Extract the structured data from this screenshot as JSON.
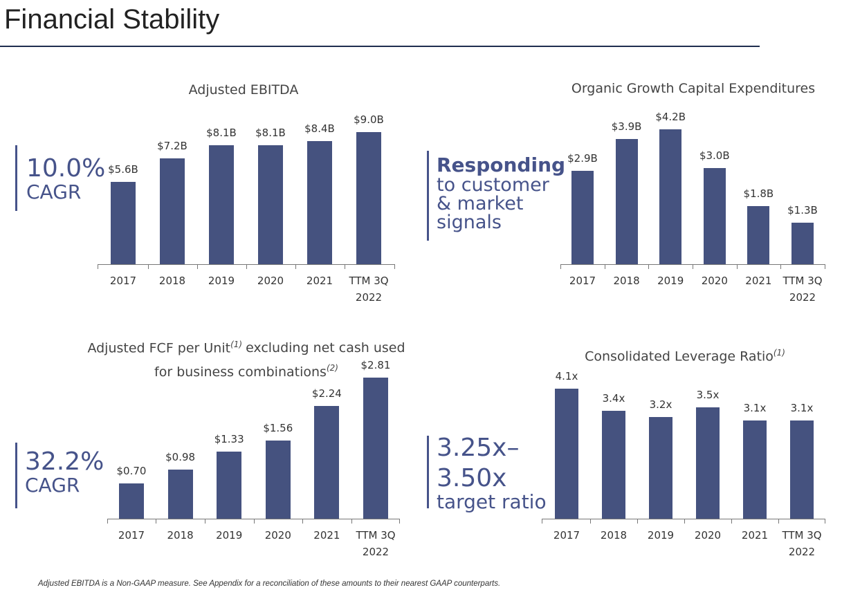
{
  "page_title": "Financial Stability",
  "footnote": "Adjusted EBITDA is a Non-GAAP measure. See Appendix for a reconciliation of these amounts to their nearest GAAP counterparts.",
  "chart_data": [
    {
      "type": "bar",
      "title": [
        {
          "text": "Adjusted EBITDA"
        }
      ],
      "color": "#45527f",
      "categories": [
        "2017",
        "2018",
        "2019",
        "2020",
        "2021",
        "TTM 3Q 2022"
      ],
      "values": [
        5.6,
        7.2,
        8.1,
        8.1,
        8.4,
        9.0
      ],
      "value_labels": [
        "$5.6B",
        "$7.2B",
        "$8.1B",
        "$8.1B",
        "$8.4B",
        "$9.0B"
      ],
      "callout": {
        "headline": "10.0%",
        "text": "CAGR"
      }
    },
    {
      "type": "bar",
      "title": [
        {
          "text": "Organic Growth Capital Expenditures"
        }
      ],
      "color": "#45527f",
      "categories": [
        "2017",
        "2018",
        "2019",
        "2020",
        "2021",
        "TTM 3Q 2022"
      ],
      "values": [
        2.9,
        3.9,
        4.2,
        3.0,
        1.8,
        1.3
      ],
      "value_labels": [
        "$2.9B",
        "$3.9B",
        "$4.2B",
        "$3.0B",
        "$1.8B",
        "$1.3B"
      ],
      "callout": {
        "headline": "Responding",
        "text": "to customer & market signals"
      }
    },
    {
      "type": "bar",
      "title": [
        {
          "text": "Adjusted FCF per Unit"
        },
        {
          "text": "(1)",
          "sup": true
        },
        {
          "text": "excluding net cash used for business combinations"
        },
        {
          "text": "(2)",
          "sup": true
        }
      ],
      "color": "#45527f",
      "categories": [
        "2017",
        "2018",
        "2019",
        "2020",
        "2021",
        "TTM 3Q 2022"
      ],
      "values": [
        0.7,
        0.98,
        1.33,
        1.56,
        2.24,
        2.81
      ],
      "value_labels": [
        "$0.70",
        "$0.98",
        "$1.33",
        "$1.56",
        "$2.24",
        "$2.81"
      ],
      "callout": {
        "headline": "32.2%",
        "text": "CAGR"
      }
    },
    {
      "type": "bar",
      "title": [
        {
          "text": "Consolidated Leverage Ratio"
        },
        {
          "text": "(1)",
          "sup": true
        }
      ],
      "color": "#45527f",
      "categories": [
        "2017",
        "2018",
        "2019",
        "2020",
        "2021",
        "TTM 3Q 2022"
      ],
      "values": [
        4.1,
        3.4,
        3.2,
        3.5,
        3.1,
        3.1
      ],
      "value_labels": [
        "4.1x",
        "3.4x",
        "3.2x",
        "3.5x",
        "3.1x",
        "3.1x"
      ],
      "callout": {
        "headline": "3.25x–3.50x",
        "text": "target ratio"
      }
    }
  ]
}
